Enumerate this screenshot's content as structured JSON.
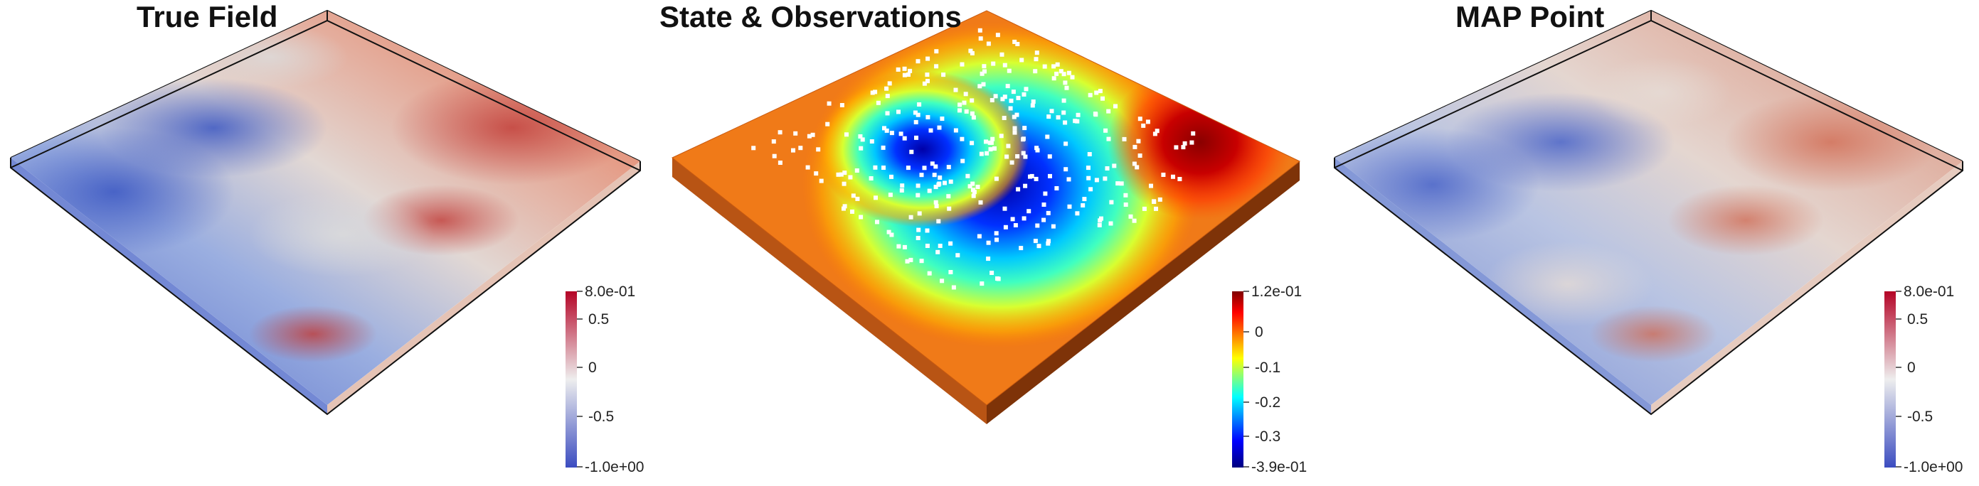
{
  "panels": [
    {
      "title": "True Field",
      "colormap": "coolwarm",
      "colorbar": {
        "labels": [
          "8.0e-01",
          "0.5",
          "0",
          "-0.5",
          "-1.0e+00"
        ],
        "values": [
          0.8,
          0.5,
          0,
          -0.5,
          -1.0
        ],
        "colors": [
          "#b40426",
          "#f5f5f5",
          "#3b4cc0"
        ]
      }
    },
    {
      "title": "State & Observations",
      "colormap": "jet",
      "colorbar": {
        "labels": [
          "1.2e-01",
          "0",
          "-0.1",
          "-0.2",
          "-0.3",
          "-3.9e-01"
        ],
        "values": [
          0.12,
          0,
          -0.1,
          -0.2,
          -0.3,
          -0.39
        ],
        "colors": [
          "#7f0000",
          "#ff0000",
          "#ffff00",
          "#00ffff",
          "#0000ff",
          "#00007f"
        ]
      },
      "observation_marker_color": "#ffffff"
    },
    {
      "title": "MAP Point",
      "colormap": "coolwarm",
      "colorbar": {
        "labels": [
          "8.0e-01",
          "0.5",
          "0",
          "-0.5",
          "-1.0e+00"
        ],
        "values": [
          0.8,
          0.5,
          0,
          -0.5,
          -1.0
        ],
        "colors": [
          "#b40426",
          "#f5f5f5",
          "#3b4cc0"
        ]
      }
    }
  ]
}
